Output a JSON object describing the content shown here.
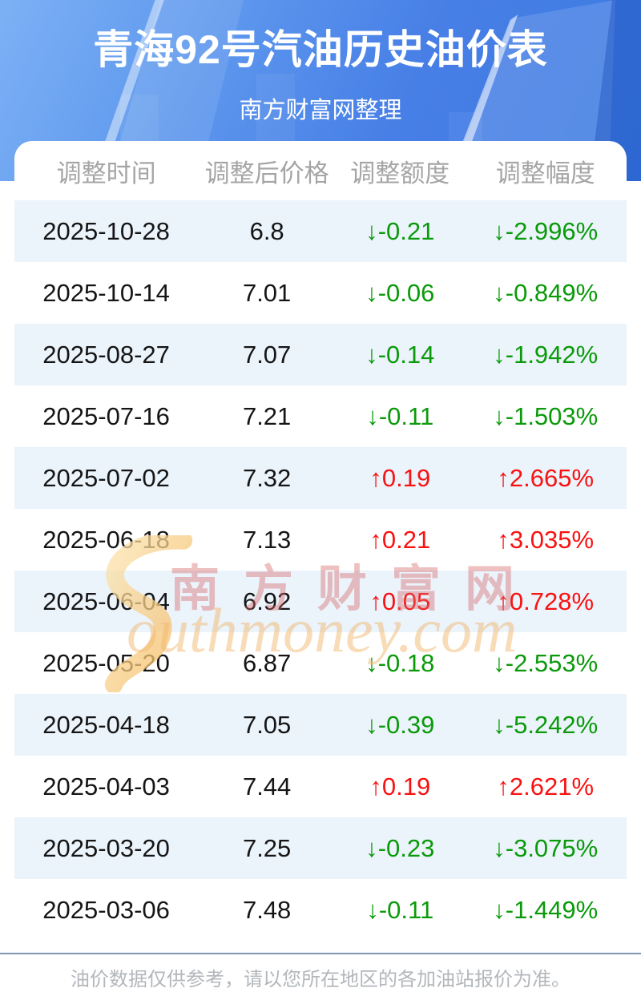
{
  "header": {
    "title": "青海92号汽油历史油价表",
    "subtitle": "南方财富网整理"
  },
  "chart_data": {
    "type": "table",
    "title": "青海92号汽油历史油价表",
    "columns": [
      "调整时间",
      "调整后价格",
      "调整额度",
      "调整幅度"
    ],
    "rows": [
      {
        "date": "2025-10-28",
        "price": "6.8",
        "change": "↓-0.21",
        "pct": "↓-2.996%",
        "direction": "down"
      },
      {
        "date": "2025-10-14",
        "price": "7.01",
        "change": "↓-0.06",
        "pct": "↓-0.849%",
        "direction": "down"
      },
      {
        "date": "2025-08-27",
        "price": "7.07",
        "change": "↓-0.14",
        "pct": "↓-1.942%",
        "direction": "down"
      },
      {
        "date": "2025-07-16",
        "price": "7.21",
        "change": "↓-0.11",
        "pct": "↓-1.503%",
        "direction": "down"
      },
      {
        "date": "2025-07-02",
        "price": "7.32",
        "change": "↑0.19",
        "pct": "↑2.665%",
        "direction": "up"
      },
      {
        "date": "2025-06-18",
        "price": "7.13",
        "change": "↑0.21",
        "pct": "↑3.035%",
        "direction": "up"
      },
      {
        "date": "2025-06-04",
        "price": "6.92",
        "change": "↑0.05",
        "pct": "↑0.728%",
        "direction": "up"
      },
      {
        "date": "2025-05-20",
        "price": "6.87",
        "change": "↓-0.18",
        "pct": "↓-2.553%",
        "direction": "down"
      },
      {
        "date": "2025-04-18",
        "price": "7.05",
        "change": "↓-0.39",
        "pct": "↓-5.242%",
        "direction": "down"
      },
      {
        "date": "2025-04-03",
        "price": "7.44",
        "change": "↑0.19",
        "pct": "↑2.621%",
        "direction": "up"
      },
      {
        "date": "2025-03-20",
        "price": "7.25",
        "change": "↓-0.23",
        "pct": "↓-3.075%",
        "direction": "down"
      },
      {
        "date": "2025-03-06",
        "price": "7.48",
        "change": "↓-0.11",
        "pct": "↓-1.449%",
        "direction": "down"
      }
    ]
  },
  "watermark": {
    "cn": "南方财富网",
    "en_text": "outhmoney.com"
  },
  "footer": {
    "note": "油价数据仅供参考，请以您所在地区的各加油站报价为准。"
  },
  "colors": {
    "up_red": "#f81212",
    "down_green": "#0a9a0a",
    "row_stripe": "#ebf3fb",
    "header_text_gray": "#a5a5a5",
    "divider_blue_gray": "#7e98b1",
    "hero_gradient_start": "#7db1f5",
    "hero_gradient_end": "#3d7be2",
    "watermark_pink": "rgba(214,106,106,0.42)",
    "watermark_orange": "rgba(242,183,112,0.5)"
  }
}
